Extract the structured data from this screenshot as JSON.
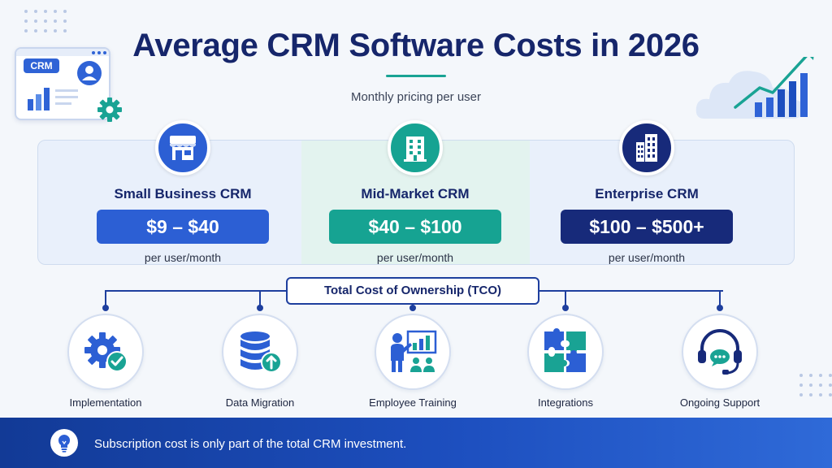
{
  "title": "Average CRM Software Costs in 2026",
  "subtitle": "Monthly pricing per user",
  "illustration": {
    "crm_badge": "CRM"
  },
  "tiers": [
    {
      "name": "Small Business CRM",
      "price": "$9 – $40",
      "unit": "per user/month",
      "icon": "storefront-icon",
      "color": "#2c5fd4"
    },
    {
      "name": "Mid-Market CRM",
      "price": "$40 – $100",
      "unit": "per user/month",
      "icon": "office-building-icon",
      "color": "#16a392"
    },
    {
      "name": "Enterprise CRM",
      "price": "$100 – $500+",
      "unit": "per user/month",
      "icon": "skyscraper-icon",
      "color": "#172a7a"
    }
  ],
  "tco": {
    "title": "Total Cost of Ownership (TCO)",
    "items": [
      {
        "label": "Implementation",
        "icon": "gear-check-icon"
      },
      {
        "label": "Data Migration",
        "icon": "database-upload-icon"
      },
      {
        "label": "Employee Training",
        "icon": "presentation-icon"
      },
      {
        "label": "Integrations",
        "icon": "puzzle-icon"
      },
      {
        "label": "Ongoing Support",
        "icon": "headset-icon"
      }
    ]
  },
  "footer": {
    "text": "Subscription cost is only part of the total CRM investment.",
    "icon": "lightbulb-icon"
  }
}
